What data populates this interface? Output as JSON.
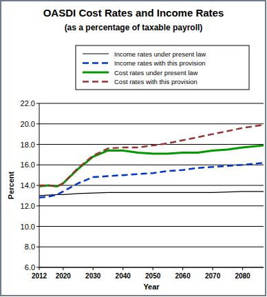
{
  "chart_data": {
    "type": "line",
    "title": "OASDI Cost Rates and Income Rates",
    "subtitle": "(as a percentage of taxable payroll)",
    "x_label": "Year",
    "y_label": "Percent",
    "x": [
      2012,
      2015,
      2018,
      2020,
      2025,
      2030,
      2035,
      2040,
      2045,
      2050,
      2055,
      2060,
      2065,
      2070,
      2075,
      2080,
      2087
    ],
    "series": [
      {
        "name": "Income rates under present law",
        "color": "#000000",
        "line_style": "solid",
        "values": [
          13.0,
          13.05,
          13.1,
          13.1,
          13.2,
          13.25,
          13.3,
          13.3,
          13.3,
          13.3,
          13.3,
          13.3,
          13.3,
          13.3,
          13.35,
          13.4,
          13.4
        ]
      },
      {
        "name": "Income rates with this provision",
        "color": "#0033cc",
        "line_style": "dashed",
        "values": [
          12.8,
          12.9,
          13.1,
          13.4,
          14.2,
          14.8,
          14.9,
          15.0,
          15.1,
          15.2,
          15.4,
          15.5,
          15.7,
          15.8,
          15.9,
          16.0,
          16.2
        ]
      },
      {
        "name": "Cost rates under present law",
        "color": "#009900",
        "line_style": "solid",
        "values": [
          13.9,
          14.0,
          13.9,
          14.2,
          15.6,
          16.8,
          17.4,
          17.4,
          17.2,
          17.1,
          17.1,
          17.2,
          17.2,
          17.4,
          17.5,
          17.7,
          17.9
        ]
      },
      {
        "name": "Cost rates with this provision",
        "color": "#993333",
        "line_style": "dashed",
        "values": [
          14.0,
          14.0,
          13.9,
          14.2,
          15.7,
          16.9,
          17.6,
          17.7,
          17.7,
          17.9,
          18.1,
          18.4,
          18.7,
          19.0,
          19.3,
          19.6,
          19.9
        ]
      }
    ],
    "xlim": [
      2012,
      2087
    ],
    "xticks": [
      2012,
      2020,
      2030,
      2040,
      2050,
      2060,
      2070,
      2080
    ],
    "ylim": [
      6,
      22
    ],
    "yticks": [
      {
        "value": 6,
        "label": "6.0"
      },
      {
        "value": 8,
        "label": "8.0"
      },
      {
        "value": 10,
        "label": "10.0"
      },
      {
        "value": 12,
        "label": "12.0"
      },
      {
        "value": 14,
        "label": "14.0"
      },
      {
        "value": 16,
        "label": "16.0"
      },
      {
        "value": 18,
        "label": "18.0"
      },
      {
        "value": 20,
        "label": "20.0"
      },
      {
        "value": 22,
        "label": "22.0"
      }
    ],
    "grid": true,
    "legend": "top"
  }
}
